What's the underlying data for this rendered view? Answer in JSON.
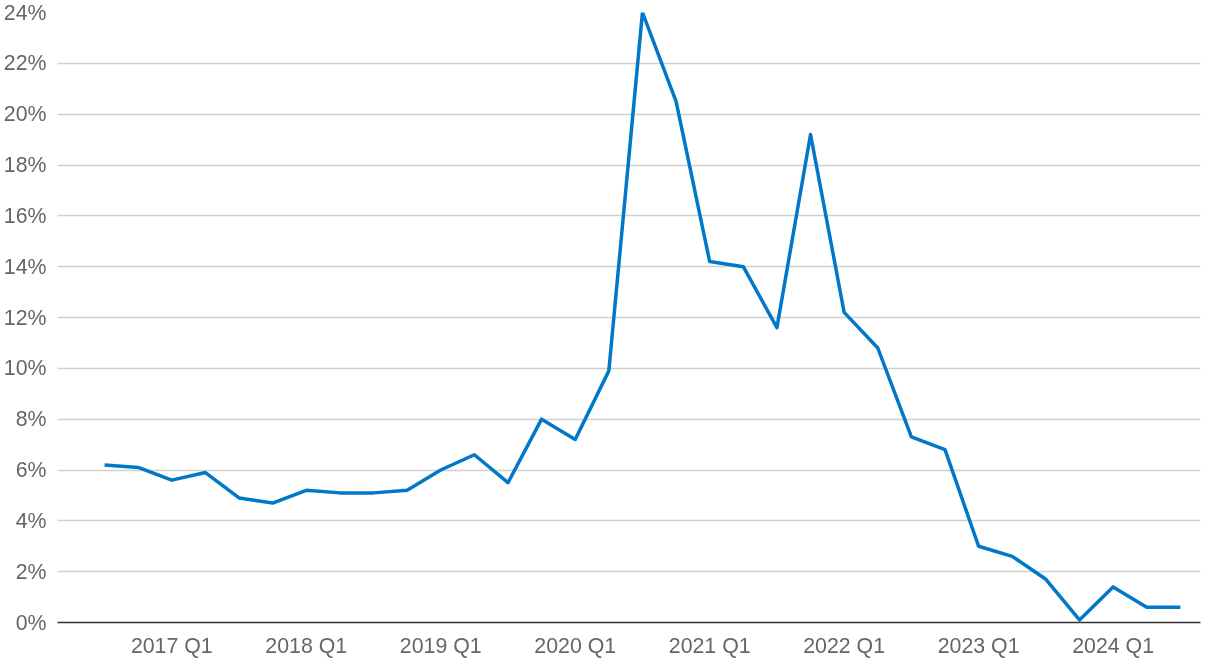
{
  "chart_data": {
    "type": "line",
    "categories": [
      null,
      null,
      "2017 Q1",
      null,
      null,
      null,
      "2018 Q1",
      null,
      null,
      null,
      "2019 Q1",
      null,
      null,
      null,
      "2020 Q1",
      null,
      null,
      null,
      "2021 Q1",
      null,
      null,
      null,
      "2022 Q1",
      null,
      null,
      null,
      "2023 Q1",
      null,
      null,
      null,
      "2024 Q1",
      null,
      null
    ],
    "series": [
      {
        "color": "#0077c8",
        "values": [
          6.2,
          6.1,
          5.6,
          5.9,
          4.9,
          4.7,
          5.2,
          5.1,
          5.1,
          5.2,
          6.0,
          6.6,
          5.5,
          8.0,
          7.2,
          9.9,
          24.0,
          20.5,
          14.2,
          14.0,
          11.6,
          19.2,
          12.2,
          10.8,
          7.3,
          6.8,
          3.0,
          2.6,
          1.7,
          0.1,
          1.4,
          0.6,
          0.6
        ]
      }
    ],
    "ylim": [
      0,
      24
    ],
    "yticks": [
      {
        "value": 0,
        "label": "0%"
      },
      {
        "value": 2,
        "label": "2%"
      },
      {
        "value": 4,
        "label": "4%"
      },
      {
        "value": 6,
        "label": "6%"
      },
      {
        "value": 8,
        "label": "8%"
      },
      {
        "value": 10,
        "label": "10%"
      },
      {
        "value": 12,
        "label": "12%"
      },
      {
        "value": 14,
        "label": "14%"
      },
      {
        "value": 16,
        "label": "16%"
      },
      {
        "value": 18,
        "label": "18%"
      },
      {
        "value": 20,
        "label": "20%"
      },
      {
        "value": 22,
        "label": "22%"
      },
      {
        "value": 24,
        "label": "24%"
      }
    ],
    "grid": "y",
    "marker": "none",
    "line_style": "solid"
  }
}
